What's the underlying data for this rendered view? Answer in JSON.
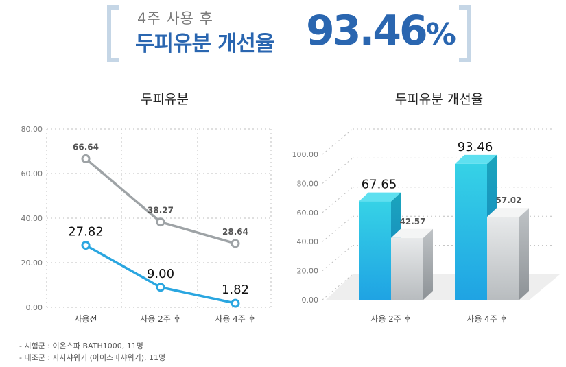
{
  "header": {
    "subtitle": "4주 사용 후",
    "title": "두피유분 개선율",
    "value": "93.46",
    "value_unit": "%"
  },
  "chart_data": [
    {
      "type": "line",
      "title": "두피유분",
      "categories": [
        "사용전",
        "사용 2주 후",
        "사용 4주 후"
      ],
      "ylim": [
        0,
        80
      ],
      "yticks": [
        "0.00",
        "20.00",
        "40.00",
        "60.00",
        "80.00"
      ],
      "series": [
        {
          "name": "대조군",
          "values": [
            66.64,
            38.27,
            28.64
          ],
          "labels": [
            "66.64",
            "38.27",
            "28.64"
          ],
          "color": "#9ea3a6"
        },
        {
          "name": "시험군",
          "values": [
            27.82,
            9.0,
            1.82
          ],
          "labels": [
            "27.82",
            "9.00",
            "1.82"
          ],
          "color": "#2aa6e0"
        }
      ]
    },
    {
      "type": "bar",
      "title": "두피유분 개선율",
      "categories": [
        "사용 2주 후",
        "사용 4주 후"
      ],
      "ylim": [
        0,
        100
      ],
      "yticks": [
        "0.00",
        "20.00",
        "40.00",
        "60.00",
        "80.00",
        "100.00"
      ],
      "series": [
        {
          "name": "시험군",
          "values": [
            67.65,
            93.46
          ],
          "labels": [
            "67.65",
            "93.46"
          ],
          "color": "#22b3e6"
        },
        {
          "name": "대조군",
          "values": [
            42.57,
            57.02
          ],
          "labels": [
            "42.57",
            "57.02"
          ],
          "color": "#c9cdd0"
        }
      ]
    }
  ],
  "footnotes": [
    "- 시험군 : 이온스파 BATH1000, 11명",
    "- 대조군 : 자사샤워기 (아이스파샤워기), 11명"
  ]
}
